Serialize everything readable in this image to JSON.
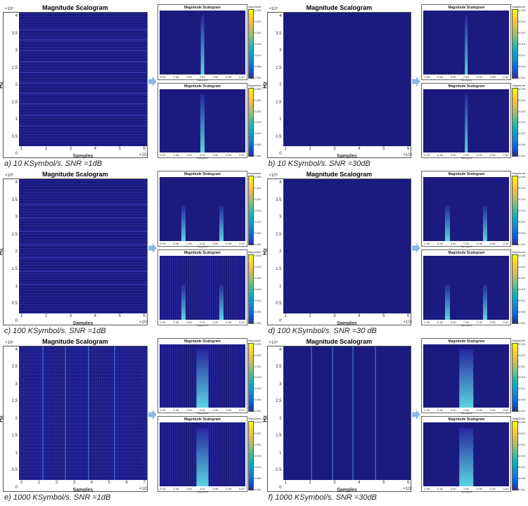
{
  "colors": {
    "scalogram_bg": "#1b1a7e",
    "scalogram_bg2": "#2626a0",
    "band": "#3a3ac0",
    "streak": "#5ad6e0",
    "streak_dim": "#3d7bd0",
    "arrow": "#8bb7e8",
    "page_bg": "#ffffff",
    "axis_text": "#333333"
  },
  "axis_main": {
    "title": "Magnitude Scalogram",
    "ylabel": "Hz",
    "xlabel": "Samples",
    "y_exponent": "×10⁴",
    "x_exponent": "×10⁴",
    "y_ticks": [
      "4",
      "3.5",
      "3",
      "2.5",
      "2",
      "1.5",
      "1",
      "0.5",
      "0"
    ],
    "x_ticks_std": [
      "1",
      "2",
      "3",
      "4",
      "5",
      "6"
    ],
    "x_ticks_e": [
      "0",
      "1",
      "2",
      "3",
      "4",
      "5",
      "6",
      "7"
    ],
    "title_fontsize_pt": 9,
    "label_fontsize_pt": 8,
    "tick_fontsize_pt": 6
  },
  "thumb": {
    "title": "Magnitude Scalogram",
    "xlabel": "Samples",
    "cbar_title": "Magnitude",
    "x_ticks": [
      "0.45",
      "0.48",
      "0.50",
      "0.52",
      "0.55",
      "0.58",
      "0.62"
    ],
    "cbar_ticks": [
      "0.028",
      "0.024",
      "0.020",
      "0.016",
      "0.012",
      "0.008",
      "0.004"
    ]
  },
  "colormap_parula": [
    "#352a87",
    "#0363e1",
    "#1485d4",
    "#06a7c6",
    "#38b99e",
    "#92bf73",
    "#d9ba56",
    "#fcce2e",
    "#f9fb0e"
  ],
  "panels": {
    "a": {
      "caption": "a)   10 KSymbol/s. SNR =1dB",
      "x_ticks_key": "x_ticks_std",
      "main": {
        "noise": 1,
        "hbands": [
          12,
          20,
          28,
          36,
          44,
          52,
          60,
          68,
          76,
          84
        ],
        "vstreaks": []
      },
      "thumb_top": {
        "spikes": [
          {
            "x": 50,
            "h": "tall",
            "w": 4,
            "c": "streak"
          }
        ]
      },
      "thumb_bottom": {
        "spikes": [
          {
            "x": 50,
            "h": "tall",
            "w": 5,
            "c": "streak"
          }
        ]
      }
    },
    "b": {
      "caption": "b)   10 KSymbol/s. SNR =30dB",
      "x_ticks_key": "x_ticks_std",
      "main": {
        "noise": 0,
        "hbands": [],
        "vstreaks": []
      },
      "thumb_top": {
        "spikes": [
          {
            "x": 50,
            "h": "tall",
            "w": 3,
            "c": "streak"
          }
        ]
      },
      "thumb_bottom": {
        "spikes": [
          {
            "x": 50,
            "h": "tall",
            "w": 3,
            "c": "streak"
          }
        ]
      }
    },
    "c": {
      "caption": "c)   100 KSymbol/s. SNR =1dB",
      "x_ticks_key": "x_ticks_std",
      "main": {
        "noise": 1,
        "hbands": [
          18,
          28,
          38,
          48,
          58,
          68,
          78
        ],
        "vstreaks": []
      },
      "thumb_top": {
        "spikes": [
          {
            "x": 28,
            "h": "short",
            "w": 5,
            "c": "streak"
          },
          {
            "x": 72,
            "h": "short",
            "w": 5,
            "c": "streak"
          }
        ]
      },
      "thumb_bottom": {
        "spikes": [
          {
            "x": 28,
            "h": "short",
            "w": 5,
            "c": "streak"
          },
          {
            "x": 72,
            "h": "short",
            "w": 5,
            "c": "streak"
          }
        ],
        "texture": 1
      }
    },
    "d": {
      "caption": "d)   100 KSymbol/s. SNR =30 dB",
      "x_ticks_key": "x_ticks_std",
      "main": {
        "noise": 0,
        "hbands": [],
        "vstreaks": []
      },
      "thumb_top": {
        "spikes": [
          {
            "x": 28,
            "h": "short",
            "w": 5,
            "c": "streak"
          },
          {
            "x": 72,
            "h": "short",
            "w": 5,
            "c": "streak"
          }
        ]
      },
      "thumb_bottom": {
        "spikes": [
          {
            "x": 28,
            "h": "short",
            "w": 5,
            "c": "streak"
          },
          {
            "x": 72,
            "h": "short",
            "w": 5,
            "c": "streak"
          }
        ]
      }
    },
    "e": {
      "caption": "e)   1000 KSymbol/s. SNR =1dB",
      "x_ticks_key": "x_ticks_e",
      "main": {
        "noise": 2,
        "hbands": [],
        "vstreaks": [
          18,
          36,
          54,
          74
        ]
      },
      "thumb_top": {
        "spikes": [
          {
            "x": 50,
            "h": "tall",
            "w": 14,
            "c": "streak"
          }
        ],
        "texture": 1
      },
      "thumb_bottom": {
        "spikes": [
          {
            "x": 50,
            "h": "tall",
            "w": 14,
            "c": "streak"
          }
        ],
        "texture": 1
      }
    },
    "f": {
      "caption": "f)   1000 KSymbol/s. SNR =30dB",
      "x_ticks_key": "x_ticks_std",
      "main": {
        "noise": 0,
        "hbands": [],
        "vstreaks": [
          22,
          38,
          54,
          72
        ]
      },
      "thumb_top": {
        "spikes": [
          {
            "x": 50,
            "h": "tall",
            "w": 16,
            "c": "streak"
          }
        ]
      },
      "thumb_bottom": {
        "spikes": [
          {
            "x": 50,
            "h": "tall",
            "w": 16,
            "c": "streak"
          }
        ]
      }
    }
  },
  "panel_order": [
    "a",
    "b",
    "c",
    "d",
    "e",
    "f"
  ]
}
